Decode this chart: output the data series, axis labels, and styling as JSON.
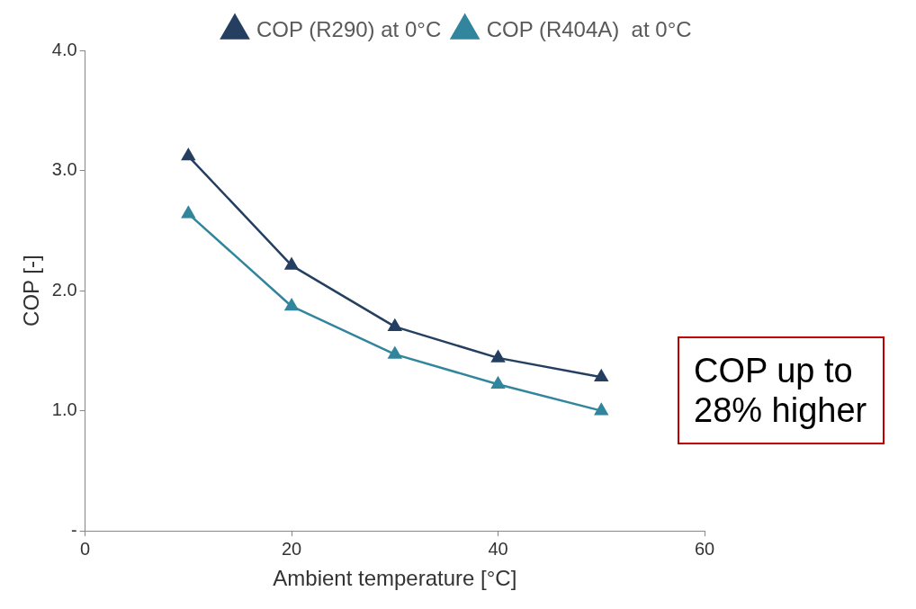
{
  "chart_data": {
    "type": "line",
    "xlabel": "Ambient temperature [°C]",
    "ylabel": "COP [-]",
    "x": [
      10,
      20,
      30,
      40,
      50
    ],
    "series": [
      {
        "name": "COP (R290) at 0°C",
        "color": "#243f60",
        "values": [
          3.12,
          2.21,
          1.7,
          1.44,
          1.28
        ]
      },
      {
        "name": "COP (R404A)  at 0°C",
        "color": "#31859c",
        "values": [
          2.64,
          1.87,
          1.47,
          1.22,
          1.0
        ]
      }
    ],
    "xlim": [
      0,
      60
    ],
    "xticks": [
      0,
      20,
      40,
      60
    ],
    "ylim": [
      0,
      4
    ],
    "yticks": [
      {
        "value": 0,
        "label": "-"
      },
      {
        "value": 1,
        "label": "1.0"
      },
      {
        "value": 2,
        "label": "2.0"
      },
      {
        "value": 3,
        "label": "3.0"
      },
      {
        "value": 4,
        "label": "4.0"
      }
    ],
    "grid": false,
    "legend": "top right",
    "marker": "triangle",
    "line_style": "solid",
    "annotations": [
      "COP up to 28% higher"
    ]
  }
}
